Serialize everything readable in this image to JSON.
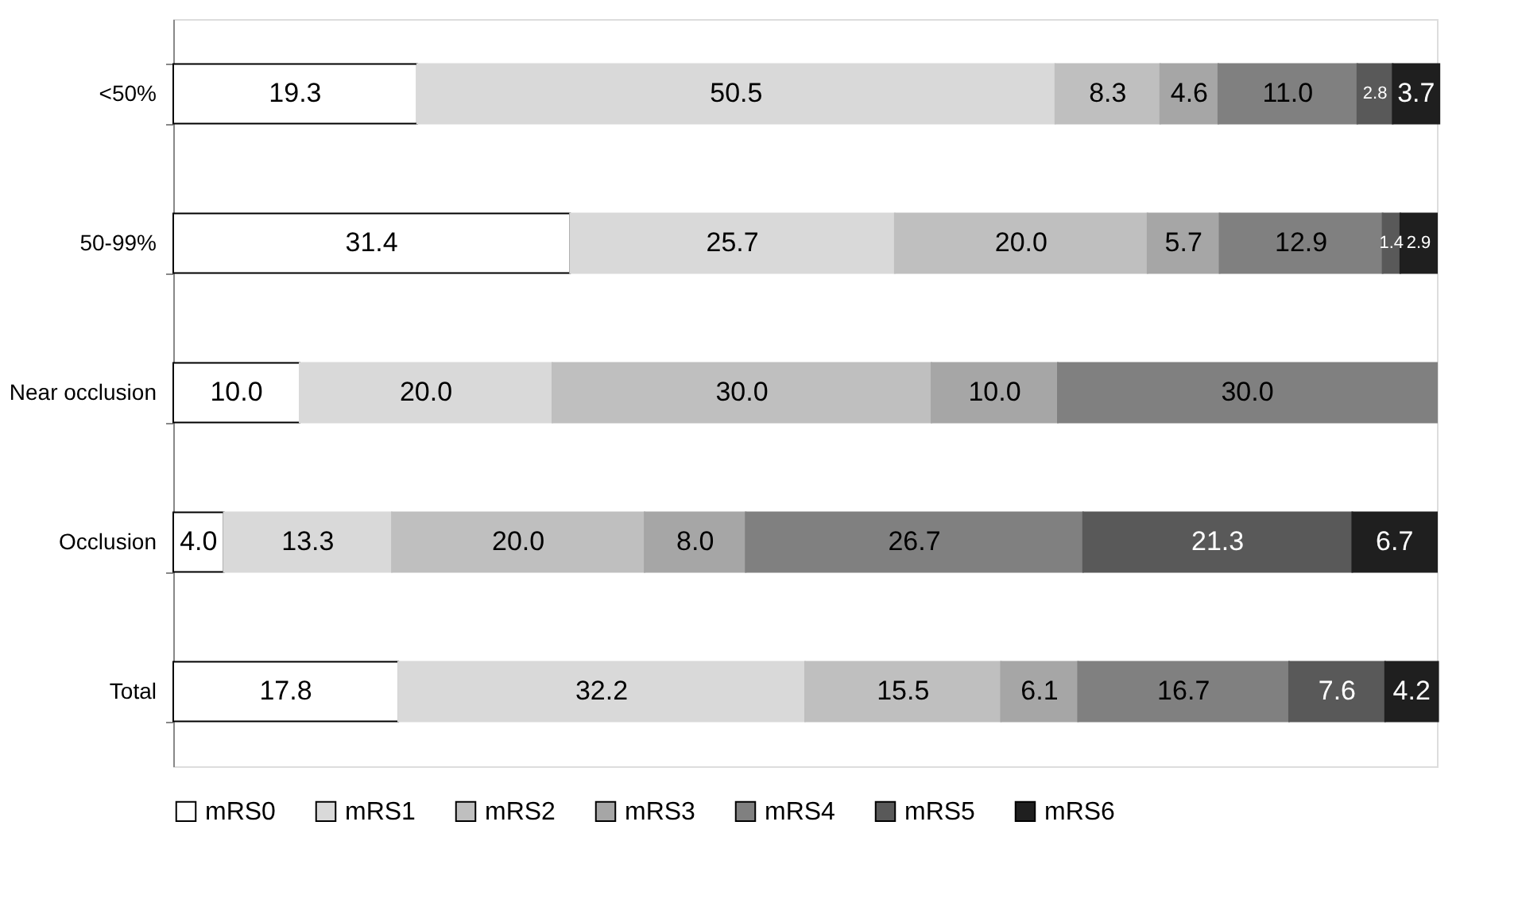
{
  "chart_data": {
    "type": "bar",
    "orientation": "horizontal",
    "stacked": true,
    "legend": "bottom",
    "grid": false,
    "tick_labels": "y",
    "xlim": [
      0,
      100
    ],
    "categories": [
      "<50%",
      "50-99%",
      "Near occlusion",
      "Occlusion",
      "Total"
    ],
    "series": [
      {
        "name": "mRS0",
        "color": "#ffffff",
        "values": [
          19.3,
          31.4,
          10.0,
          4.0,
          17.8
        ],
        "value_labels": [
          "19.3",
          "31.4",
          "10.0",
          "4.0",
          "17.8"
        ]
      },
      {
        "name": "mRS1",
        "color": "#d9d9d9",
        "values": [
          50.5,
          25.7,
          20.0,
          13.3,
          32.2
        ],
        "value_labels": [
          "50.5",
          "25.7",
          "20.0",
          "13.3",
          "32.2"
        ]
      },
      {
        "name": "mRS2",
        "color": "#bfbfbf",
        "values": [
          8.3,
          20.0,
          30.0,
          20.0,
          15.5
        ],
        "value_labels": [
          "8.3",
          "20.0",
          "30.0",
          "20.0",
          "15.5"
        ]
      },
      {
        "name": "mRS3",
        "color": "#a6a6a6",
        "values": [
          4.6,
          5.7,
          10.0,
          8.0,
          6.1
        ],
        "value_labels": [
          "4.6",
          "5.7",
          "10.0",
          "8.0",
          "6.1"
        ]
      },
      {
        "name": "mRS4",
        "color": "#808080",
        "values": [
          11.0,
          12.9,
          30.0,
          26.7,
          16.7
        ],
        "value_labels": [
          "11.0",
          "12.9",
          "30.0",
          "26.7",
          "16.7"
        ]
      },
      {
        "name": "mRS5",
        "color": "#595959",
        "values": [
          2.8,
          1.4,
          null,
          21.3,
          7.6
        ],
        "value_labels": [
          "2.8",
          "1.4",
          null,
          "21.3",
          "7.6"
        ]
      },
      {
        "name": "mRS6",
        "color": "#1f1f1f",
        "values": [
          3.7,
          2.9,
          null,
          6.7,
          4.2
        ],
        "value_labels": [
          "3.7",
          "2.9",
          null,
          "6.7",
          "4.2"
        ]
      }
    ]
  }
}
